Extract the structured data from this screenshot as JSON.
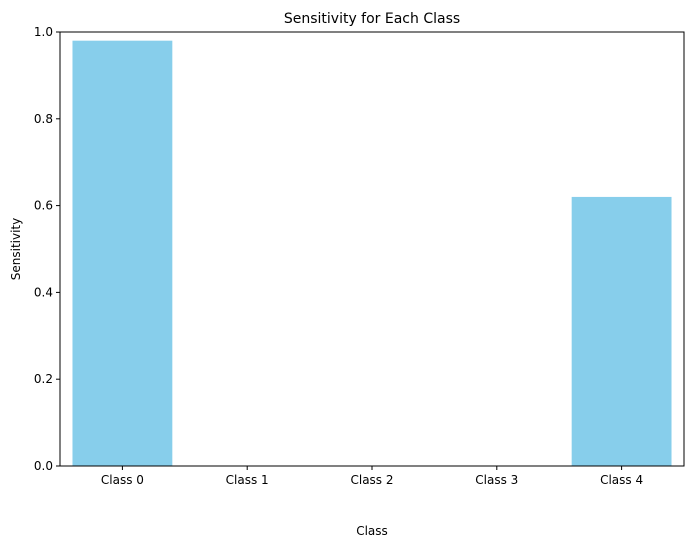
{
  "chart_data": {
    "type": "bar",
    "title": "Sensitivity for Each Class",
    "xlabel": "Class",
    "ylabel": "Sensitivity",
    "categories": [
      "Class 0",
      "Class 1",
      "Class 2",
      "Class 3",
      "Class 4"
    ],
    "values": [
      0.98,
      0.0,
      0.0,
      0.0,
      0.62
    ],
    "ylim": [
      0,
      1.0
    ],
    "yticks": [
      "0.0",
      "0.2",
      "0.4",
      "0.6",
      "0.8",
      "1.0"
    ],
    "grid": false,
    "bar_color": "#87ceeb"
  }
}
